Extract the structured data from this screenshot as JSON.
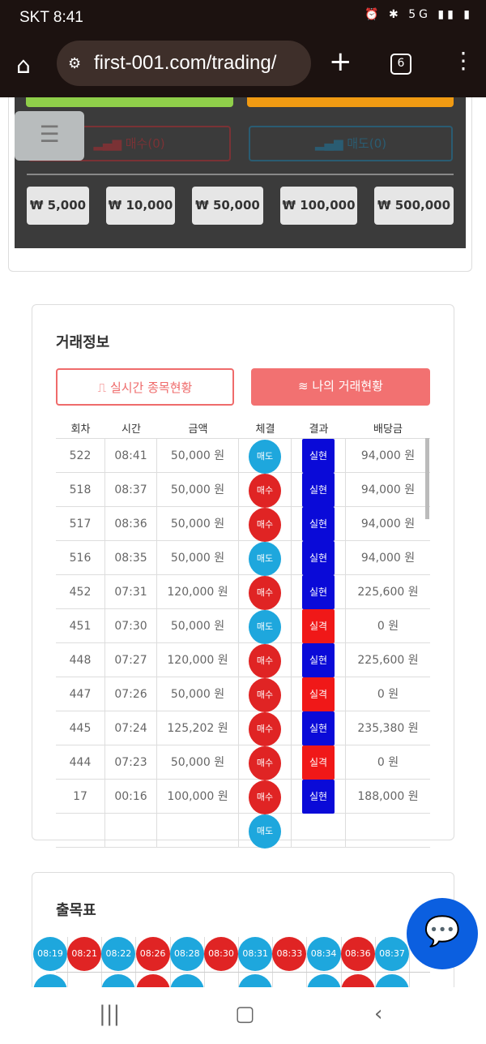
{
  "status": {
    "carrier_time": "SKT 8:41",
    "icons": "⏰ ✱ 5G ▮▮ ▮"
  },
  "browser": {
    "url": "first-001.com/trading/",
    "tab_count": "6"
  },
  "trade_panel": {
    "buy_label": "매수(0)",
    "sell_label": "매도(0)",
    "amounts": [
      "₩ 5,000",
      "₩ 10,000",
      "₩ 50,000",
      "₩ 100,000",
      "₩ 500,000"
    ]
  },
  "trade_info": {
    "title": "거래정보",
    "tab_realtime": "실시간 종목현황",
    "tab_mine": "나의 거래현황",
    "columns": [
      "회차",
      "시간",
      "금액",
      "체결",
      "결과",
      "배당금"
    ],
    "rows": [
      [
        "522",
        "08:41",
        "50,000 원",
        "매도",
        "실현",
        "94,000 원"
      ],
      [
        "518",
        "08:37",
        "50,000 원",
        "매수",
        "실현",
        "94,000 원"
      ],
      [
        "517",
        "08:36",
        "50,000 원",
        "매수",
        "실현",
        "94,000 원"
      ],
      [
        "516",
        "08:35",
        "50,000 원",
        "매도",
        "실현",
        "94,000 원"
      ],
      [
        "452",
        "07:31",
        "120,000 원",
        "매수",
        "실현",
        "225,600 원"
      ],
      [
        "451",
        "07:30",
        "50,000 원",
        "매도",
        "실격",
        "0 원"
      ],
      [
        "448",
        "07:27",
        "120,000 원",
        "매수",
        "실현",
        "225,600 원"
      ],
      [
        "447",
        "07:26",
        "50,000 원",
        "매수",
        "실격",
        "0 원"
      ],
      [
        "445",
        "07:24",
        "125,202 원",
        "매수",
        "실현",
        "235,380 원"
      ],
      [
        "444",
        "07:23",
        "50,000 원",
        "매수",
        "실격",
        "0 원"
      ],
      [
        "17",
        "00:16",
        "100,000 원",
        "매수",
        "실현",
        "188,000 원"
      ],
      [
        "",
        "",
        "",
        "매도",
        "",
        ""
      ]
    ]
  },
  "colors": {
    "buy": "#e02424",
    "sell": "#1ea7dd",
    "win": "#0a0ad8",
    "lose": "#f01818"
  },
  "history": {
    "title": "출목표",
    "row1": [
      {
        "t": "08:19",
        "c": "sell"
      },
      {
        "t": "08:21",
        "c": "buy"
      },
      {
        "t": "08:22",
        "c": "sell"
      },
      {
        "t": "08:26",
        "c": "buy"
      },
      {
        "t": "08:28",
        "c": "sell"
      },
      {
        "t": "08:30",
        "c": "buy"
      },
      {
        "t": "08:31",
        "c": "sell"
      },
      {
        "t": "08:33",
        "c": "buy"
      },
      {
        "t": "08:34",
        "c": "sell"
      },
      {
        "t": "08:36",
        "c": "buy"
      },
      {
        "t": "08:37",
        "c": "sell"
      }
    ],
    "row2": [
      "sell",
      "",
      "sell",
      "buy",
      "sell",
      "",
      "sell",
      "",
      "sell",
      "buy",
      "sell"
    ]
  }
}
